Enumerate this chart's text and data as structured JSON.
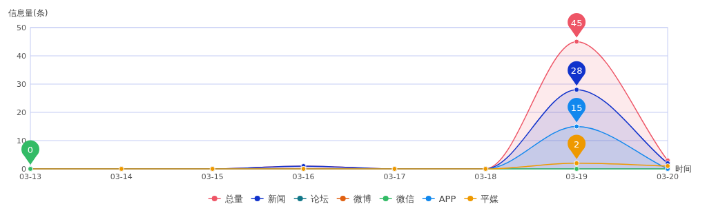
{
  "chart_data": {
    "type": "line",
    "xlabel": "时间",
    "ylabel": "信息量(条)",
    "categories": [
      "03-13",
      "03-14",
      "03-15",
      "03-16",
      "03-17",
      "03-18",
      "03-19",
      "03-20"
    ],
    "series": [
      {
        "name": "总量",
        "color": "#ee5566",
        "type": "area",
        "values": [
          0,
          0,
          0,
          1,
          0,
          0,
          45,
          3
        ],
        "value_labels": [
          null,
          null,
          null,
          null,
          null,
          null,
          "45",
          null
        ]
      },
      {
        "name": "新闻",
        "color": "#1133cc",
        "type": "area",
        "values": [
          0,
          0,
          0,
          1,
          0,
          0,
          28,
          2
        ],
        "value_labels": [
          null,
          null,
          null,
          null,
          null,
          null,
          "28",
          null
        ]
      },
      {
        "name": "论坛",
        "color": "#117788",
        "values": [
          null,
          null,
          null,
          null,
          null,
          null,
          null,
          null
        ]
      },
      {
        "name": "微博",
        "color": "#e06010",
        "values": [
          null,
          null,
          null,
          null,
          null,
          null,
          null,
          null
        ]
      },
      {
        "name": "微信",
        "color": "#33bb66",
        "values": [
          0,
          null,
          null,
          null,
          null,
          0,
          0,
          0
        ],
        "value_labels": [
          "0",
          null,
          null,
          null,
          null,
          null,
          null,
          null
        ]
      },
      {
        "name": "APP",
        "color": "#1188ee",
        "type": "area",
        "values": [
          0,
          0,
          0,
          0,
          0,
          0,
          15,
          0
        ],
        "value_labels": [
          null,
          null,
          null,
          null,
          null,
          null,
          "15",
          null
        ]
      },
      {
        "name": "平媒",
        "color": "#ee9900",
        "values": [
          0,
          0,
          0,
          0,
          0,
          0,
          2,
          1
        ],
        "value_labels": [
          null,
          null,
          null,
          null,
          null,
          null,
          "2",
          null
        ]
      }
    ],
    "ylim": [
      0,
      50
    ],
    "yticks": [
      0,
      10,
      20,
      30,
      40,
      50
    ],
    "grid": "y",
    "legend": "bottom",
    "marker": "circle",
    "line_style": "solid"
  }
}
